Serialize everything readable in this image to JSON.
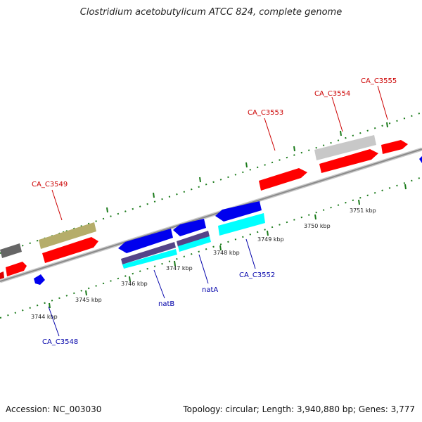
{
  "title": "Clostridium acetobutylicum ATCC 824, complete genome",
  "accession_text": "Accession: NC_003030",
  "summary_text": "Topology: circular; Length: 3,940,880 bp; Genes: 3,777",
  "colors": {
    "red_gene": "#ff0000",
    "blue_gene": "#0000ee",
    "cyan_gene": "#00ffff",
    "purple_gene": "#554488",
    "gray_gene": "#c8c8c8",
    "dark_gray_gene": "#666666",
    "olive_gene": "#b5ad6a",
    "backbone": "#909090",
    "tick_green": "#1a7a1a",
    "label_red": "#cc0000",
    "label_blue": "#0000aa"
  },
  "kbp_labels": [
    "3744 kbp",
    "3745 kbp",
    "3746 kbp",
    "3747 kbp",
    "3748 kbp",
    "3749 kbp",
    "3750 kbp",
    "3751 kbp"
  ],
  "forward_labels": [
    "CA_C3549",
    "CA_C3553",
    "CA_C3554",
    "CA_C3555"
  ],
  "reverse_labels": [
    "CA_C3548",
    "natB",
    "natA",
    "CA_C3552"
  ]
}
